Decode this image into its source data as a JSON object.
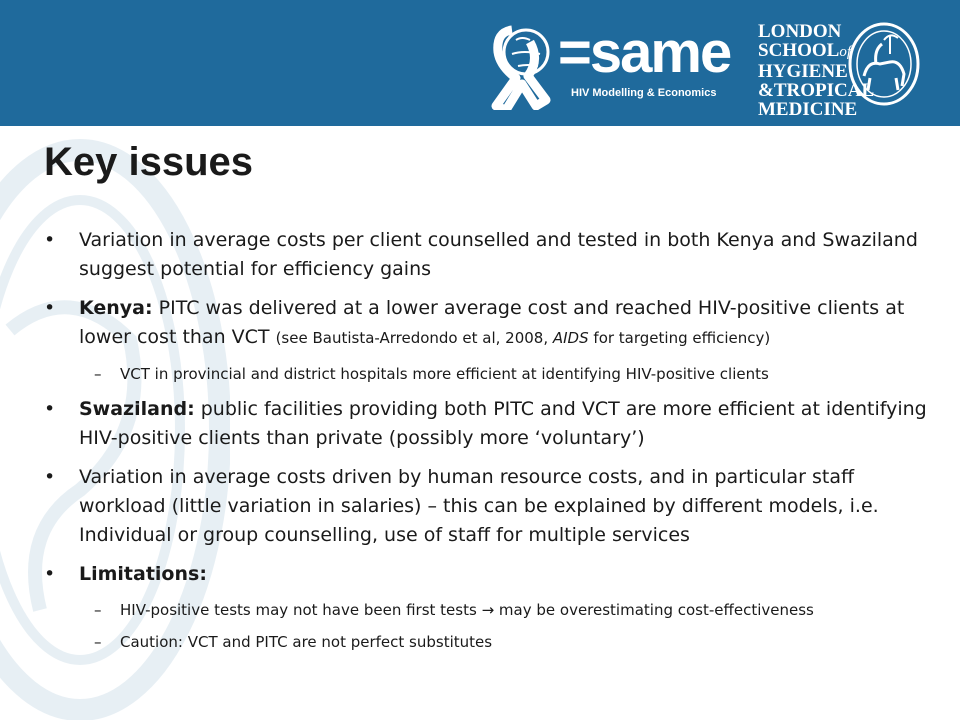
{
  "header": {
    "brand_word": "=same",
    "brand_tagline": "HIV Modelling & Economics",
    "lshtm_lines": [
      "LONDON",
      "SCHOOL",
      "of",
      "HYGIENE",
      "&TROPICAL",
      "MEDICINE"
    ],
    "background_color": "#1f6a9c"
  },
  "title": "Key issues",
  "bullets": {
    "b1": {
      "text": "Variation in average costs per client counselled and tested in both Kenya and Swaziland suggest potential for efficiency gains"
    },
    "b2": {
      "lead": "Kenya:",
      "text": " PITC was delivered at a lower average cost and reached HIV-positive clients at lower cost than VCT ",
      "note_pre": "(see Bautista-Arredondo  et al, 2008, ",
      "note_em": "AIDS",
      "note_post": " for targeting efficiency)"
    },
    "b2_sub1": {
      "text": "VCT in provincial and district hospitals more efficient at identifying HIV-positive clients"
    },
    "b3": {
      "lead": "Swaziland:",
      "text": " public facilities providing both PITC and VCT are more efficient at identifying HIV-positive clients than private (possibly more ‘voluntary’)"
    },
    "b4": {
      "text": "Variation in average costs driven by human resource costs, and in particular staff workload (little variation in salaries) – this can be explained by different models, i.e. Individual or group counselling, use of staff for multiple services"
    },
    "b5": {
      "lead": "Limitations:"
    },
    "b5_sub1": {
      "pre": "HIV-positive tests may not have been first tests ",
      "arrow": "→",
      "post": " may be overestimating cost-effectiveness"
    },
    "b5_sub2": {
      "text": "Caution: VCT and PITC are not perfect substitutes"
    }
  },
  "marks": {
    "bullet": "•",
    "dash": "–"
  },
  "icons": {
    "brand": "ribbon-globe-icon",
    "crest": "lshtm-crest-icon",
    "watermark": "crest-watermark-icon"
  }
}
